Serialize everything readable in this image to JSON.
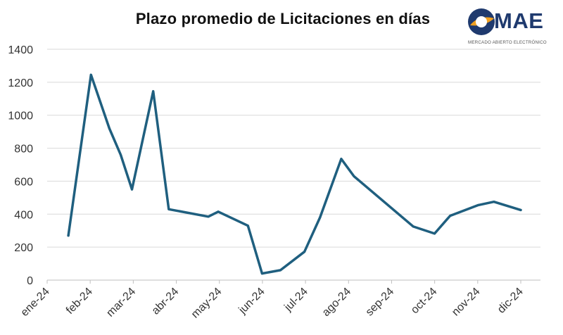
{
  "title": "Plazo promedio de Licitaciones  en días",
  "logo": {
    "name": "MAE",
    "subtitle": "MERCADO ABIERTO ELECTRÓNICO",
    "colors": {
      "brand_blue": "#1f3a6e",
      "brand_orange": "#f0a020"
    }
  },
  "chart_data": {
    "type": "line",
    "title": "Plazo promedio de Licitaciones  en días",
    "x_tick_labels": [
      "ene-24",
      "feb-24",
      "mar-24",
      "abr-24",
      "may-24",
      "jun-24",
      "jul-24",
      "ago-24",
      "sep-24",
      "oct-24",
      "nov-24",
      "dic-24"
    ],
    "x_range": [
      "2024-01-01",
      "2024-12-01"
    ],
    "series": [
      {
        "color": "#1f5f7f",
        "points": [
          {
            "date": "2024-01-16",
            "y": 270
          },
          {
            "date": "2024-02-01",
            "y": 1245
          },
          {
            "date": "2024-02-14",
            "y": 920
          },
          {
            "date": "2024-02-22",
            "y": 760
          },
          {
            "date": "2024-03-01",
            "y": 550
          },
          {
            "date": "2024-03-16",
            "y": 1145
          },
          {
            "date": "2024-03-27",
            "y": 430
          },
          {
            "date": "2024-04-24",
            "y": 385
          },
          {
            "date": "2024-05-01",
            "y": 415
          },
          {
            "date": "2024-05-22",
            "y": 330
          },
          {
            "date": "2024-06-01",
            "y": 40
          },
          {
            "date": "2024-06-14",
            "y": 60
          },
          {
            "date": "2024-07-01",
            "y": 172
          },
          {
            "date": "2024-07-12",
            "y": 380
          },
          {
            "date": "2024-07-27",
            "y": 735
          },
          {
            "date": "2024-08-05",
            "y": 630
          },
          {
            "date": "2024-09-16",
            "y": 325
          },
          {
            "date": "2024-10-01",
            "y": 282
          },
          {
            "date": "2024-10-12",
            "y": 390
          },
          {
            "date": "2024-11-01",
            "y": 455
          },
          {
            "date": "2024-11-12",
            "y": 475
          },
          {
            "date": "2024-12-01",
            "y": 425
          }
        ]
      }
    ],
    "ylim": [
      0,
      1400
    ],
    "y_ticks": [
      0,
      200,
      400,
      600,
      800,
      1000,
      1200,
      1400
    ],
    "grid": true,
    "legend": "none"
  }
}
